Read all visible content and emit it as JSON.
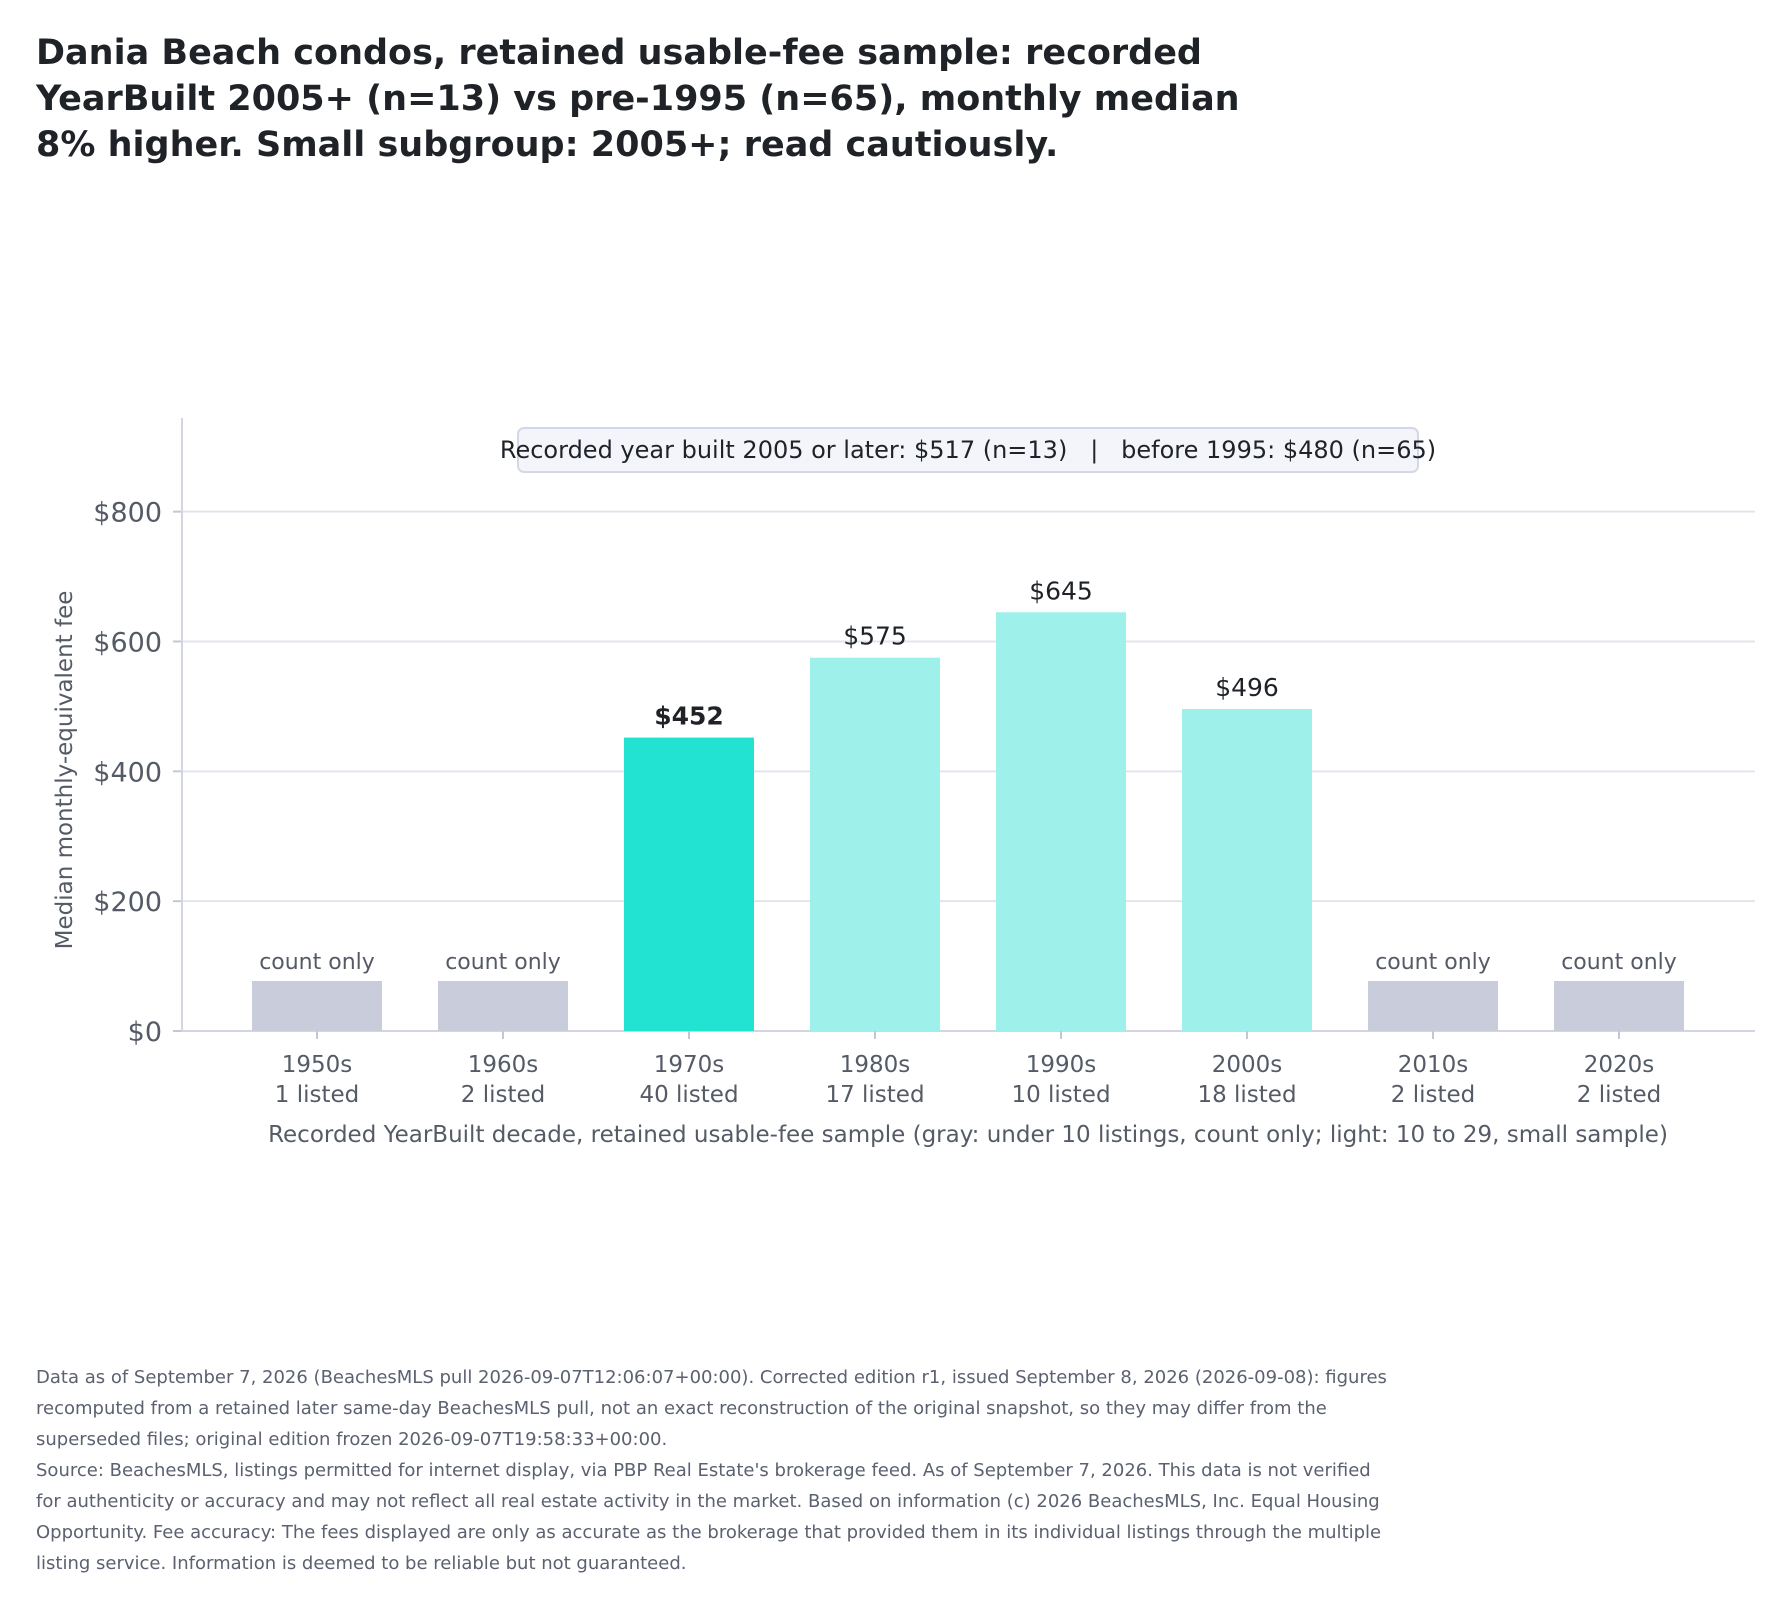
{
  "title": "Dania Beach condos, retained usable-fee sample: recorded YearBuilt 2005+ (n=13) vs pre-1995 (n=65), monthly median 8% higher. Small subgroup: 2005+; read cautiously.",
  "chart_data": {
    "type": "bar",
    "ylabel": "Median monthly-equivalent fee",
    "xlabel": "Recorded YearBuilt decade, retained usable-fee sample (gray: under 10 listings, count only; light: 10 to 29, small sample)",
    "ylim": [
      0,
      935
    ],
    "yticks": [
      0,
      200,
      400,
      600,
      800
    ],
    "ytick_labels": [
      "$0",
      "$200",
      "$400",
      "$600",
      "$800"
    ],
    "grid": true,
    "annotation": "Recorded year built 2005 or later: $517 (n=13)   |   before 1995: $480 (n=65)",
    "count_only_label": "count only",
    "count_only_value": 77,
    "colors": {
      "highlight": "#22e2d2",
      "small_sample": "#9ef1ea",
      "count_only": "#c9ccdb"
    },
    "categories": [
      "1950s",
      "1960s",
      "1970s",
      "1980s",
      "1990s",
      "2000s",
      "2010s",
      "2020s"
    ],
    "listed": [
      "1 listed",
      "2 listed",
      "40 listed",
      "17 listed",
      "10 listed",
      "18 listed",
      "2 listed",
      "2 listed"
    ],
    "values": [
      null,
      null,
      452,
      575,
      645,
      496,
      null,
      null
    ],
    "value_labels": [
      "",
      "",
      "$452",
      "$575",
      "$645",
      "$496",
      "",
      ""
    ],
    "status": [
      "count_only",
      "count_only",
      "highlight",
      "small_sample",
      "small_sample",
      "small_sample",
      "count_only",
      "count_only"
    ]
  },
  "footer": {
    "line1": "Data as of September 7, 2026 (BeachesMLS pull 2026-09-07T12:06:07+00:00). Corrected edition r1, issued September 8, 2026 (2026-09-08): figures recomputed from a retained later same-day BeachesMLS pull, not an exact reconstruction of the original snapshot, so they may differ from the superseded files; original edition frozen 2026-09-07T19:58:33+00:00.",
    "line2": "Source: BeachesMLS, listings permitted for internet display, via PBP Real Estate's brokerage feed. As of September 7, 2026. This data is not verified for authenticity or accuracy and may not reflect all real estate activity in the market. Based on information (c) 2026 BeachesMLS, Inc. Equal Housing Opportunity. Fee accuracy: The fees displayed are only as accurate as the brokerage that provided them in its individual listings through the multiple listing service. Information is deemed to be reliable but not guaranteed."
  }
}
